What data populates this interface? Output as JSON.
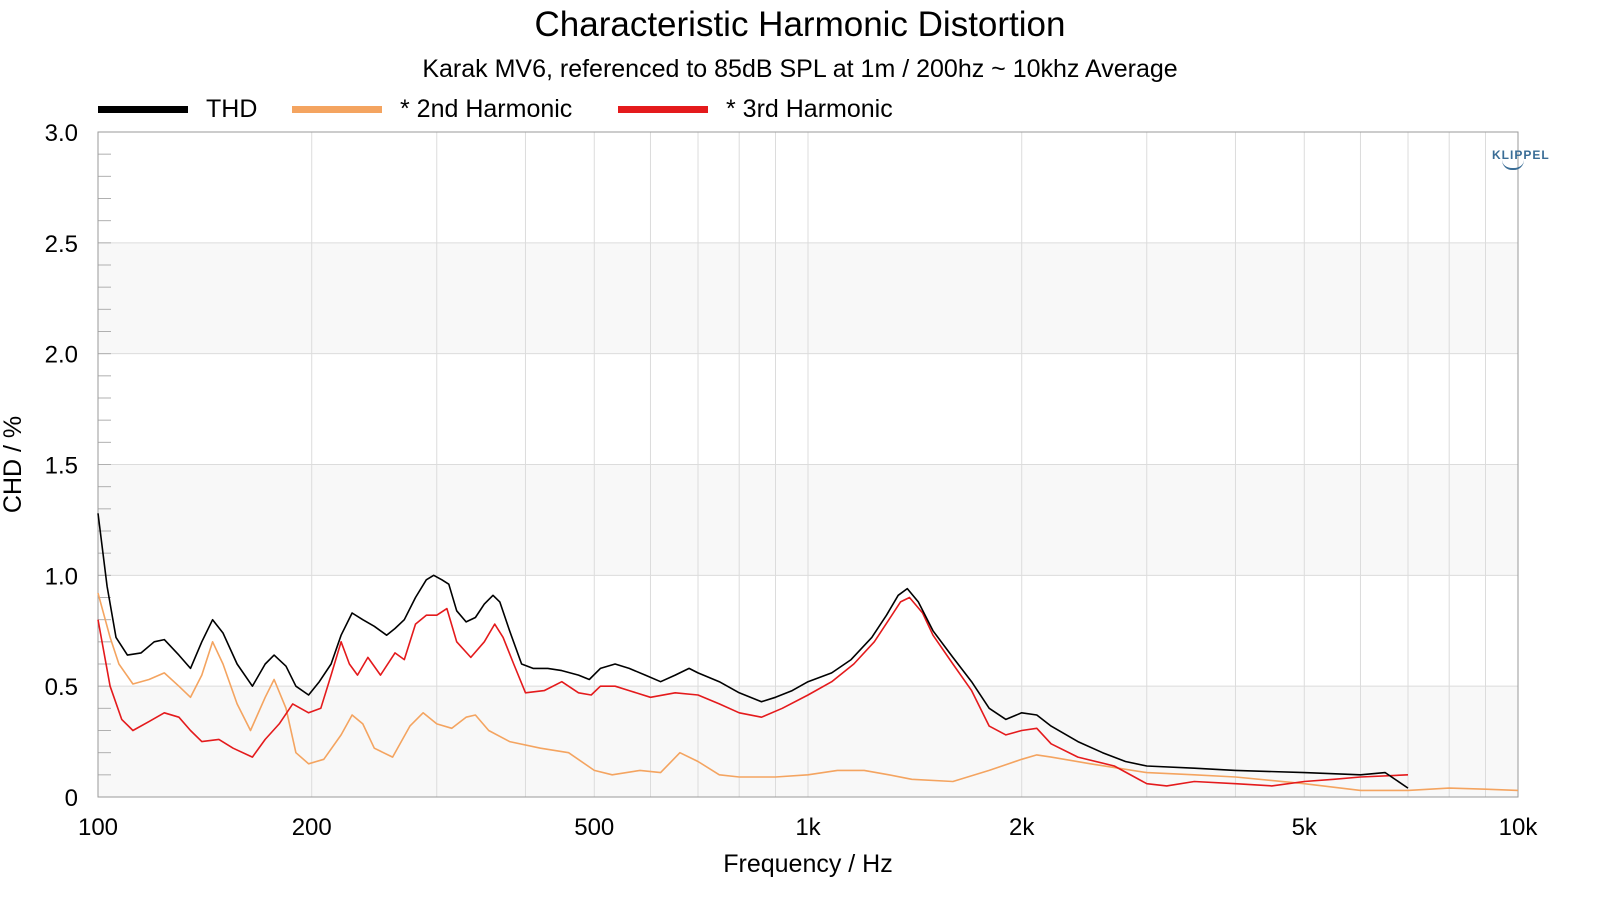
{
  "chart_data": {
    "type": "line",
    "title": "Characteristic Harmonic Distortion",
    "subtitle": "Karak MV6, referenced to 85dB SPL at 1m / 200hz ~ 10khz Average",
    "xlabel": "Frequency / Hz",
    "ylabel": "CHD / %",
    "xscale": "log",
    "xlim": [
      100,
      10000
    ],
    "ylim": [
      0,
      3.0
    ],
    "x_ticks": [
      100,
      200,
      500,
      1000,
      2000,
      5000,
      10000
    ],
    "x_tick_labels": [
      "100",
      "200",
      "500",
      "1k",
      "2k",
      "5k",
      "10k"
    ],
    "y_ticks": [
      0,
      0.5,
      1.0,
      1.5,
      2.0,
      2.5,
      3.0
    ],
    "y_tick_labels": [
      "0",
      "0.5",
      "1.0",
      "1.5",
      "2.0",
      "2.5",
      "3.0"
    ],
    "grid": true,
    "legend_position": "top-left",
    "watermark": "KLIPPEL",
    "series": [
      {
        "name": "THD",
        "color": "#000000",
        "points": [
          [
            100,
            1.28
          ],
          [
            103,
            0.95
          ],
          [
            106,
            0.72
          ],
          [
            110,
            0.64
          ],
          [
            115,
            0.65
          ],
          [
            120,
            0.7
          ],
          [
            124,
            0.71
          ],
          [
            130,
            0.64
          ],
          [
            135,
            0.58
          ],
          [
            140,
            0.7
          ],
          [
            145,
            0.8
          ],
          [
            150,
            0.74
          ],
          [
            157,
            0.6
          ],
          [
            165,
            0.5
          ],
          [
            172,
            0.6
          ],
          [
            177,
            0.64
          ],
          [
            184,
            0.59
          ],
          [
            190,
            0.5
          ],
          [
            198,
            0.46
          ],
          [
            205,
            0.52
          ],
          [
            213,
            0.6
          ],
          [
            220,
            0.73
          ],
          [
            228,
            0.83
          ],
          [
            236,
            0.8
          ],
          [
            245,
            0.77
          ],
          [
            255,
            0.73
          ],
          [
            262,
            0.76
          ],
          [
            270,
            0.8
          ],
          [
            280,
            0.9
          ],
          [
            290,
            0.98
          ],
          [
            297,
            1.0
          ],
          [
            305,
            0.98
          ],
          [
            312,
            0.96
          ],
          [
            320,
            0.84
          ],
          [
            330,
            0.79
          ],
          [
            340,
            0.81
          ],
          [
            350,
            0.87
          ],
          [
            360,
            0.91
          ],
          [
            368,
            0.88
          ],
          [
            380,
            0.75
          ],
          [
            395,
            0.6
          ],
          [
            410,
            0.58
          ],
          [
            430,
            0.58
          ],
          [
            450,
            0.57
          ],
          [
            475,
            0.55
          ],
          [
            492,
            0.53
          ],
          [
            510,
            0.58
          ],
          [
            535,
            0.6
          ],
          [
            560,
            0.58
          ],
          [
            590,
            0.55
          ],
          [
            620,
            0.52
          ],
          [
            650,
            0.55
          ],
          [
            680,
            0.58
          ],
          [
            700,
            0.56
          ],
          [
            750,
            0.52
          ],
          [
            800,
            0.47
          ],
          [
            860,
            0.43
          ],
          [
            900,
            0.45
          ],
          [
            950,
            0.48
          ],
          [
            1000,
            0.52
          ],
          [
            1080,
            0.56
          ],
          [
            1150,
            0.62
          ],
          [
            1230,
            0.72
          ],
          [
            1290,
            0.82
          ],
          [
            1340,
            0.91
          ],
          [
            1380,
            0.94
          ],
          [
            1430,
            0.88
          ],
          [
            1500,
            0.75
          ],
          [
            1600,
            0.63
          ],
          [
            1700,
            0.52
          ],
          [
            1800,
            0.4
          ],
          [
            1900,
            0.35
          ],
          [
            2000,
            0.38
          ],
          [
            2100,
            0.37
          ],
          [
            2200,
            0.32
          ],
          [
            2400,
            0.25
          ],
          [
            2600,
            0.2
          ],
          [
            2800,
            0.16
          ],
          [
            3000,
            0.14
          ],
          [
            3500,
            0.13
          ],
          [
            4000,
            0.12
          ],
          [
            5000,
            0.11
          ],
          [
            6000,
            0.1
          ],
          [
            6500,
            0.11
          ],
          [
            7000,
            0.04
          ]
        ]
      },
      {
        "name": "* 2nd Harmonic",
        "color": "#f4a460",
        "points": [
          [
            100,
            0.92
          ],
          [
            104,
            0.72
          ],
          [
            107,
            0.6
          ],
          [
            112,
            0.51
          ],
          [
            118,
            0.53
          ],
          [
            124,
            0.56
          ],
          [
            130,
            0.5
          ],
          [
            135,
            0.45
          ],
          [
            140,
            0.55
          ],
          [
            145,
            0.7
          ],
          [
            150,
            0.6
          ],
          [
            157,
            0.42
          ],
          [
            164,
            0.3
          ],
          [
            172,
            0.45
          ],
          [
            177,
            0.53
          ],
          [
            184,
            0.4
          ],
          [
            190,
            0.2
          ],
          [
            198,
            0.15
          ],
          [
            208,
            0.17
          ],
          [
            220,
            0.28
          ],
          [
            228,
            0.37
          ],
          [
            236,
            0.33
          ],
          [
            245,
            0.22
          ],
          [
            260,
            0.18
          ],
          [
            275,
            0.32
          ],
          [
            287,
            0.38
          ],
          [
            300,
            0.33
          ],
          [
            315,
            0.31
          ],
          [
            330,
            0.36
          ],
          [
            340,
            0.37
          ],
          [
            355,
            0.3
          ],
          [
            380,
            0.25
          ],
          [
            420,
            0.22
          ],
          [
            460,
            0.2
          ],
          [
            500,
            0.12
          ],
          [
            530,
            0.1
          ],
          [
            580,
            0.12
          ],
          [
            620,
            0.11
          ],
          [
            660,
            0.2
          ],
          [
            700,
            0.16
          ],
          [
            750,
            0.1
          ],
          [
            800,
            0.09
          ],
          [
            900,
            0.09
          ],
          [
            1000,
            0.1
          ],
          [
            1100,
            0.12
          ],
          [
            1200,
            0.12
          ],
          [
            1300,
            0.1
          ],
          [
            1400,
            0.08
          ],
          [
            1600,
            0.07
          ],
          [
            1800,
            0.12
          ],
          [
            2000,
            0.17
          ],
          [
            2100,
            0.19
          ],
          [
            2200,
            0.18
          ],
          [
            2500,
            0.15
          ],
          [
            3000,
            0.11
          ],
          [
            3500,
            0.1
          ],
          [
            4000,
            0.09
          ],
          [
            5000,
            0.06
          ],
          [
            6000,
            0.03
          ],
          [
            7000,
            0.03
          ],
          [
            8000,
            0.04
          ],
          [
            9000,
            0.035
          ],
          [
            10000,
            0.03
          ]
        ]
      },
      {
        "name": "* 3rd Harmonic",
        "color": "#e41a1c",
        "points": [
          [
            100,
            0.8
          ],
          [
            104,
            0.5
          ],
          [
            108,
            0.35
          ],
          [
            112,
            0.3
          ],
          [
            118,
            0.34
          ],
          [
            124,
            0.38
          ],
          [
            130,
            0.36
          ],
          [
            135,
            0.3
          ],
          [
            140,
            0.25
          ],
          [
            148,
            0.26
          ],
          [
            155,
            0.22
          ],
          [
            165,
            0.18
          ],
          [
            172,
            0.26
          ],
          [
            180,
            0.33
          ],
          [
            188,
            0.42
          ],
          [
            198,
            0.38
          ],
          [
            206,
            0.4
          ],
          [
            213,
            0.55
          ],
          [
            220,
            0.7
          ],
          [
            226,
            0.6
          ],
          [
            232,
            0.55
          ],
          [
            240,
            0.63
          ],
          [
            250,
            0.55
          ],
          [
            262,
            0.65
          ],
          [
            270,
            0.62
          ],
          [
            280,
            0.78
          ],
          [
            290,
            0.82
          ],
          [
            300,
            0.82
          ],
          [
            310,
            0.85
          ],
          [
            320,
            0.7
          ],
          [
            335,
            0.63
          ],
          [
            350,
            0.7
          ],
          [
            362,
            0.78
          ],
          [
            372,
            0.72
          ],
          [
            385,
            0.6
          ],
          [
            400,
            0.47
          ],
          [
            425,
            0.48
          ],
          [
            450,
            0.52
          ],
          [
            475,
            0.47
          ],
          [
            495,
            0.46
          ],
          [
            510,
            0.5
          ],
          [
            535,
            0.5
          ],
          [
            560,
            0.48
          ],
          [
            600,
            0.45
          ],
          [
            650,
            0.47
          ],
          [
            700,
            0.46
          ],
          [
            750,
            0.42
          ],
          [
            800,
            0.38
          ],
          [
            860,
            0.36
          ],
          [
            920,
            0.4
          ],
          [
            1000,
            0.46
          ],
          [
            1080,
            0.52
          ],
          [
            1160,
            0.6
          ],
          [
            1240,
            0.7
          ],
          [
            1300,
            0.8
          ],
          [
            1350,
            0.88
          ],
          [
            1390,
            0.9
          ],
          [
            1450,
            0.83
          ],
          [
            1500,
            0.73
          ],
          [
            1600,
            0.6
          ],
          [
            1700,
            0.48
          ],
          [
            1800,
            0.32
          ],
          [
            1900,
            0.28
          ],
          [
            2000,
            0.3
          ],
          [
            2100,
            0.31
          ],
          [
            2200,
            0.24
          ],
          [
            2400,
            0.18
          ],
          [
            2700,
            0.14
          ],
          [
            3000,
            0.06
          ],
          [
            3200,
            0.05
          ],
          [
            3500,
            0.07
          ],
          [
            4000,
            0.06
          ],
          [
            4500,
            0.05
          ],
          [
            5000,
            0.07
          ],
          [
            5500,
            0.08
          ],
          [
            6000,
            0.09
          ],
          [
            7000,
            0.1
          ]
        ]
      }
    ]
  }
}
